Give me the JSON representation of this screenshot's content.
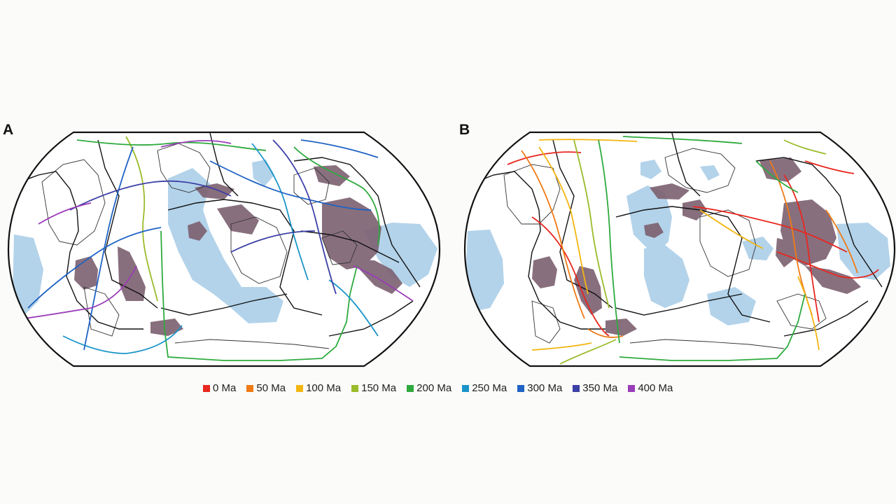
{
  "panels": [
    {
      "label": "A",
      "age_sets": [
        "150 Ma",
        "200 Ma",
        "250 Ma",
        "300 Ma",
        "350 Ma",
        "400 Ma"
      ]
    },
    {
      "label": "B",
      "age_sets": [
        "0 Ma",
        "50 Ma",
        "100 Ma",
        "150 Ma",
        "200 Ma"
      ]
    }
  ],
  "legend": [
    {
      "label": "0 Ma",
      "color": "#e8271e"
    },
    {
      "label": "50 Ma",
      "color": "#f07a16"
    },
    {
      "label": "100 Ma",
      "color": "#f3b511"
    },
    {
      "label": "150 Ma",
      "color": "#9abb2a"
    },
    {
      "label": "200 Ma",
      "color": "#2eaa3d"
    },
    {
      "label": "250 Ma",
      "color": "#1b95c9"
    },
    {
      "label": "300 Ma",
      "color": "#1f63c4"
    },
    {
      "label": "350 Ma",
      "color": "#3b3fa6"
    },
    {
      "label": "400 Ma",
      "color": "#9a3db8"
    }
  ],
  "map_colors": {
    "ocean_region": "#b3d3ea",
    "lower_mantle_anomaly": "#7c6070",
    "coastline": "#333333",
    "plate_boundary": "#111111",
    "background": "#ffffff"
  }
}
